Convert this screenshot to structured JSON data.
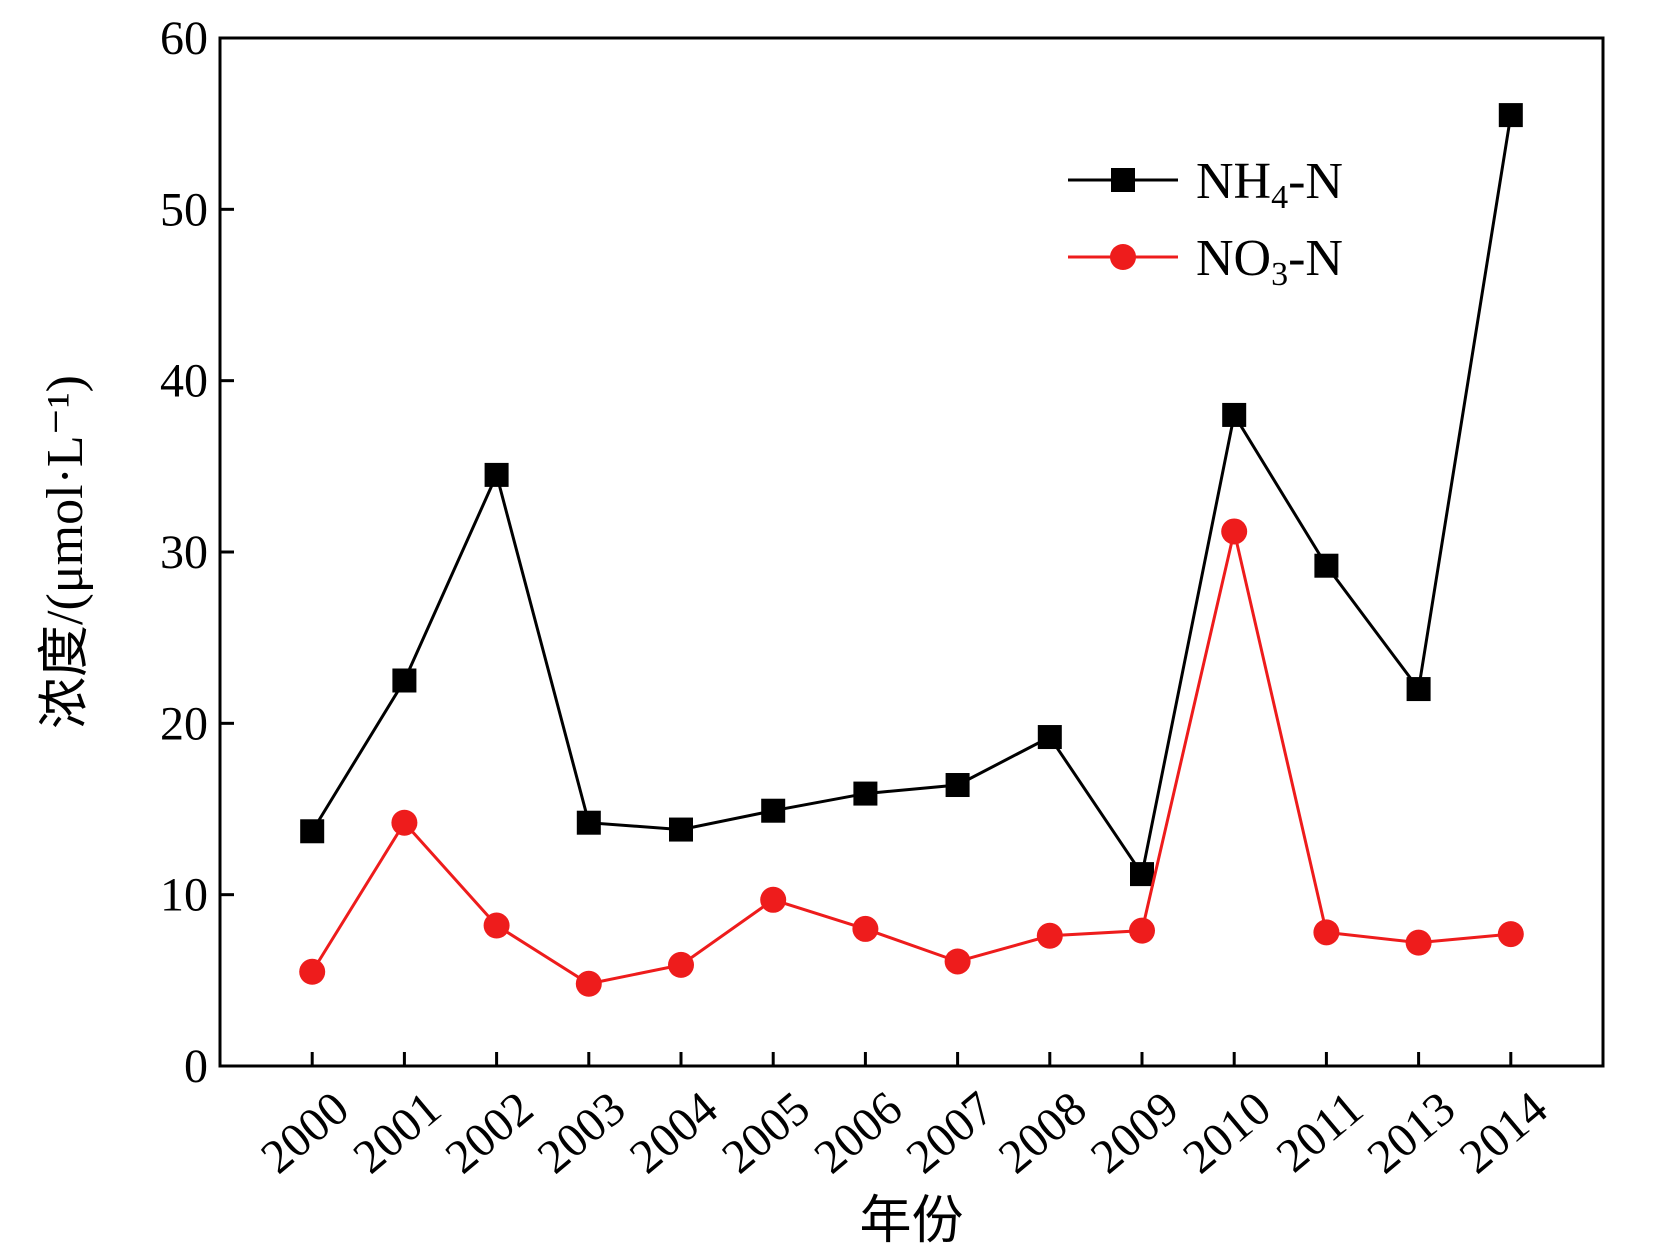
{
  "chart_data": {
    "type": "line",
    "xlabel": "年份",
    "ylabel": "浓度/(μmol·L⁻¹)",
    "ylim": [
      0,
      60
    ],
    "yticks": [
      0,
      10,
      20,
      30,
      40,
      50,
      60
    ],
    "categories": [
      "2000",
      "2001",
      "2002",
      "2003",
      "2004",
      "2005",
      "2006",
      "2007",
      "2008",
      "2009",
      "2010",
      "2011",
      "2013",
      "2014"
    ],
    "grid": false,
    "legend_position": "top-right",
    "series": [
      {
        "name": "NH4-N",
        "name_main": "NH",
        "name_sub": "4",
        "name_tail": "-N",
        "color": "#000000",
        "marker": "square",
        "values": [
          13.7,
          22.5,
          34.5,
          14.2,
          13.8,
          14.9,
          15.9,
          16.4,
          19.2,
          11.2,
          38.0,
          29.2,
          22.0,
          55.5
        ]
      },
      {
        "name": "NO3-N",
        "name_main": "NO",
        "name_sub": "3",
        "name_tail": "-N",
        "color": "#ee1c1c",
        "marker": "circle",
        "values": [
          5.5,
          14.2,
          8.2,
          4.8,
          5.9,
          9.7,
          8.0,
          6.1,
          7.6,
          7.9,
          31.2,
          7.8,
          7.2,
          7.7
        ]
      }
    ]
  }
}
